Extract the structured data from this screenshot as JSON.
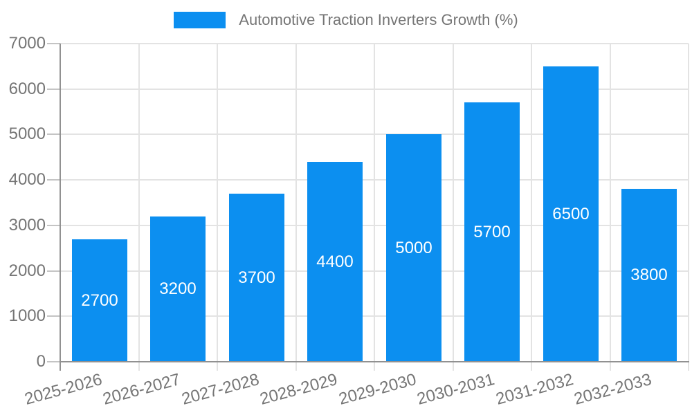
{
  "chart_data": {
    "type": "bar",
    "title": "Automotive Traction Inverters Growth (%)",
    "categories": [
      "2025-2026",
      "2026-2027",
      "2027-2028",
      "2028-2029",
      "2029-2030",
      "2030-2031",
      "2031-2032",
      "2032-2033"
    ],
    "values": [
      2700,
      3200,
      3700,
      4400,
      5000,
      5700,
      6500,
      3800
    ],
    "data_labels": [
      "2700",
      "3200",
      "3700",
      "4400",
      "5000",
      "5700",
      "6500",
      "3800"
    ],
    "xlabel": "",
    "ylabel": "",
    "ylim": [
      0,
      7000
    ],
    "ytick_step": 1000,
    "ytick_labels": [
      "0",
      "1000",
      "2000",
      "3000",
      "4000",
      "5000",
      "6000",
      "7000"
    ],
    "grid": true,
    "legend_position": "top-center",
    "x_tick_rotation_deg": -15,
    "colors": {
      "bar": "#0c8ff0",
      "grid": "#e3e3e3",
      "axis": "#919191",
      "tick": "#c4c4c4",
      "axis_label": "#757575",
      "data_label": "#ffffff",
      "legend_text": "#757575",
      "background": "#ffffff"
    }
  }
}
